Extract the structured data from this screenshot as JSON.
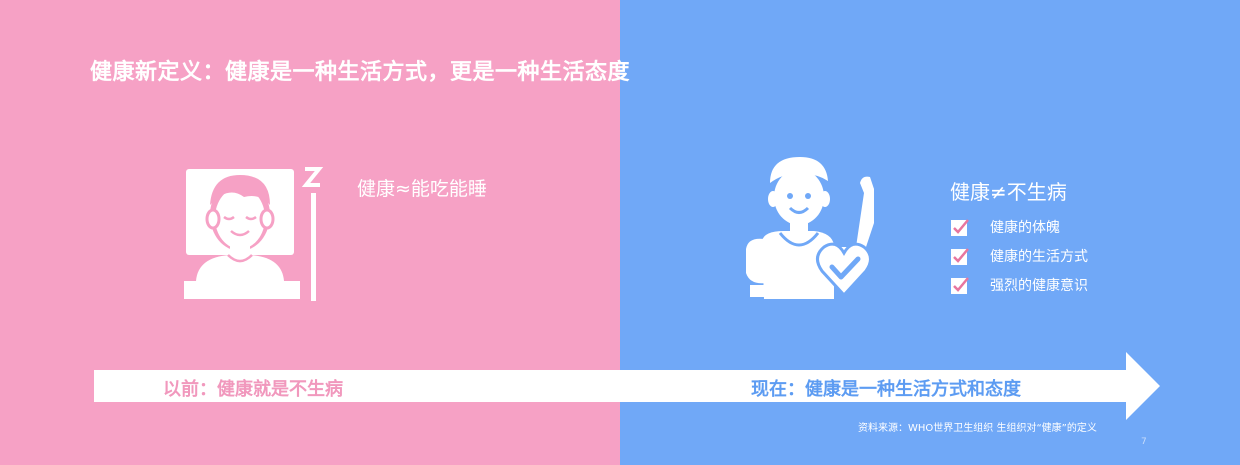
{
  "slide": {
    "title": "健康新定义：健康是一种生活方式，更是一种生活态度",
    "left": {
      "heading": "健康≈能吃能睡",
      "label": "以前：健康就是不生病",
      "icon": "sleeping-person-icon"
    },
    "right": {
      "heading": "健康≠不生病",
      "label": "现在：健康是一种生活方式和态度",
      "icon": "fit-person-heart-icon",
      "checklist": [
        {
          "label": "健康的体魄",
          "icon": "check-icon"
        },
        {
          "label": "健康的生活方式",
          "icon": "check-icon"
        },
        {
          "label": "强烈的健康意识",
          "icon": "check-icon"
        }
      ]
    },
    "source": "资料来源：WHO世界卫生组织 生组织对“健康”的定义",
    "page_number": "7"
  },
  "colors": {
    "left_bg": "#f6a1c5",
    "right_bg": "#70a8f7",
    "arrow": "#ffffff",
    "left_label": "#f198bd",
    "right_label": "#5d9cf2",
    "check_mark": "#e8769f"
  }
}
